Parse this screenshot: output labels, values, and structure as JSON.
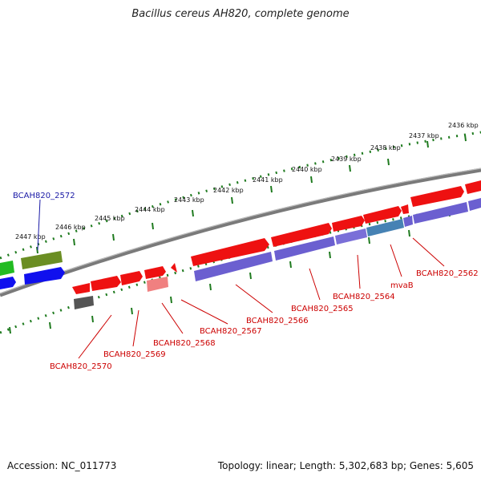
{
  "title": "Bacillus cereus AH820, complete genome",
  "accession": "Accession: NC_011773",
  "summary": "Topology: linear; Length: 5,302,683 bp; Genes: 5,605",
  "ruler_ticks": [
    "2436 kbp",
    "2437 kbp",
    "2438 kbp",
    "2439 kbp",
    "2440 kbp",
    "2441 kbp",
    "2442 kbp",
    "2443 kbp",
    "2444 kbp",
    "2445 kbp",
    "2446 kbp",
    "2447 kbp"
  ],
  "gene_labels": {
    "g2572": "BCAH820_2572",
    "g2570": "BCAH820_2570",
    "g2569": "BCAH820_2569",
    "g2568": "BCAH820_2568",
    "g2567": "BCAH820_2567",
    "g2566": "BCAH820_2566",
    "g2565": "BCAH820_2565",
    "g2564": "BCAH820_2564",
    "mvab": "mvaB",
    "g2562": "BCAH820_2562"
  },
  "colors": {
    "cds_red": "#ee1111",
    "rna_light_red": "#f08080",
    "protein_blue": "#6b5fd0",
    "genome_grey": "#808080",
    "ruler_green": "#1e7a1e",
    "gene_green": "#22bb22",
    "gene_olive": "#6b8e23",
    "gene_dark_blue": "#1010ee",
    "gene_teal": "#4682b4",
    "gene_dark_grey": "#555555"
  }
}
